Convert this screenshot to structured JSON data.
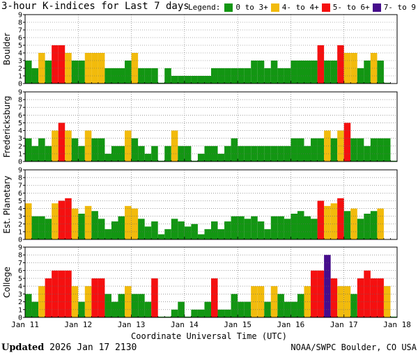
{
  "title": "3-hour K-indices for Last 7 days",
  "legend": {
    "label": "Legend:",
    "items": [
      {
        "label": "0 to 3+",
        "color": "#129612"
      },
      {
        "label": "4- to 4+",
        "color": "#f2bb0c"
      },
      {
        "label": "5- to 6+",
        "color": "#f51010"
      },
      {
        "label": "7- to 9",
        "color": "#460d8c"
      }
    ]
  },
  "footer": {
    "updated_label": "Updated",
    "updated_value": "2026 Jan 17 2130",
    "source": "NOAA/SWPC Boulder, CO USA"
  },
  "chart_data": {
    "type": "bar",
    "xlabel": "Coordinate Universal Time (UTC)",
    "x_ticks": [
      "Jan 11",
      "Jan 12",
      "Jan 13",
      "Jan 14",
      "Jan 15",
      "Jan 16",
      "Jan 17",
      "Jan 18"
    ],
    "interval_hours": 3,
    "y_ticks": [
      0,
      1,
      2,
      3,
      4,
      5,
      6,
      7,
      8,
      9
    ],
    "ylim": [
      0,
      9
    ],
    "grid": true,
    "series": [
      {
        "name": "Boulder",
        "values": [
          3,
          2,
          4,
          3,
          5,
          5,
          4,
          3,
          3,
          4,
          4,
          4,
          2,
          2,
          2,
          3,
          4,
          2,
          2,
          2,
          0.1,
          2,
          1,
          1,
          1,
          1,
          1,
          1,
          2,
          2,
          2,
          2,
          2,
          2,
          3,
          3,
          2,
          3,
          2,
          2,
          3,
          3,
          3,
          3,
          5,
          3,
          3,
          5,
          4,
          4,
          2,
          3,
          4,
          3,
          0.1
        ]
      },
      {
        "name": "Fredericksburg",
        "values": [
          3,
          2,
          3,
          2,
          4,
          5,
          4,
          3,
          2,
          4,
          3,
          3,
          1,
          2,
          2,
          4,
          3,
          2,
          1,
          2,
          0.1,
          2,
          4,
          2,
          2,
          0.1,
          1,
          2,
          2,
          1,
          2,
          3,
          2,
          2,
          2,
          2,
          2,
          2,
          2,
          2,
          3,
          3,
          2,
          3,
          3,
          4,
          3,
          4,
          5,
          3,
          3,
          2,
          3,
          3,
          3,
          0.1
        ]
      },
      {
        "name": "Est. Planetary",
        "values": [
          4.67,
          3,
          3,
          2.67,
          4.67,
          5,
          5.33,
          4,
          3.33,
          4.33,
          3.67,
          2.67,
          1.33,
          2.33,
          3,
          4.33,
          4,
          2.67,
          1.67,
          2.33,
          0.67,
          1.33,
          2.67,
          2.33,
          1.67,
          2,
          0.67,
          1.33,
          2.33,
          1.33,
          2.33,
          3,
          3,
          2.67,
          3,
          2.33,
          1.33,
          3,
          3,
          2.67,
          3.33,
          3.67,
          3,
          2.67,
          5,
          4.33,
          4.67,
          5.33,
          3.67,
          4,
          2.67,
          3.33,
          3.67,
          4,
          0
        ]
      },
      {
        "name": "College",
        "values": [
          3,
          2,
          4,
          5,
          6,
          6,
          6,
          4,
          2,
          4,
          5,
          5,
          3,
          2,
          3,
          4,
          3,
          3,
          2,
          5,
          0.1,
          0.1,
          1,
          2,
          0.1,
          1,
          1,
          2,
          5,
          1,
          1,
          3,
          2,
          2,
          4,
          4,
          2,
          4,
          3,
          2,
          2,
          3,
          4,
          6,
          6,
          8,
          5,
          4,
          4,
          3,
          5,
          6,
          5,
          5,
          4,
          0.1
        ]
      }
    ]
  }
}
